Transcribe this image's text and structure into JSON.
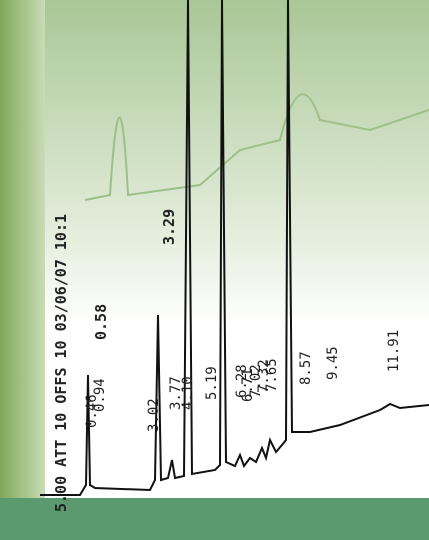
{
  "header": {
    "text": "5.00 ATT 10 OFFS 10 03/06/07 10:1"
  },
  "side_labels": [
    "0.58",
    "3.29"
  ],
  "peak_labels": [
    "0.46",
    "0.94",
    "3.02",
    "3.77",
    "4.10",
    "5.19",
    "6.28",
    "6.71",
    "7.02",
    "7.32",
    "7.65",
    "8.57",
    "9.45",
    "11.91"
  ]
}
